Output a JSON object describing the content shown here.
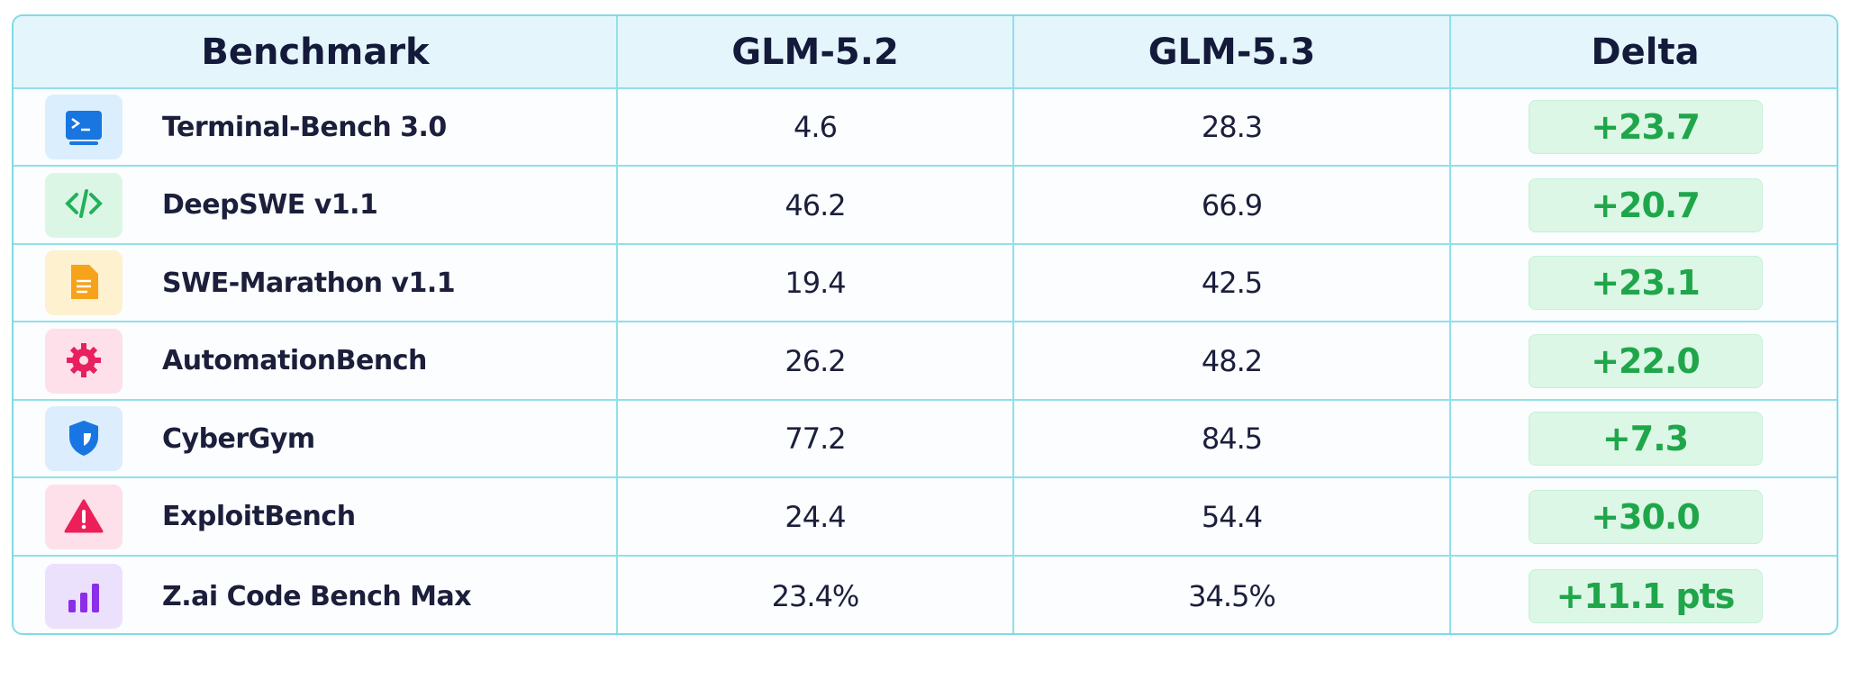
{
  "table": {
    "header": [
      "Benchmark",
      "GLM-5.2",
      "GLM-5.3",
      "Delta"
    ],
    "rows": [
      [
        "Terminal-Bench 3.0",
        "4.6",
        "28.3",
        "+23.7"
      ],
      [
        "DeepSWE v1.1",
        "46.2",
        "66.9",
        "+20.7"
      ],
      [
        "SWE-Marathon v1.1",
        "19.4",
        "42.5",
        "+23.1"
      ],
      [
        "AutomationBench",
        "26.2",
        "48.2",
        "+22.0"
      ],
      [
        "CyberGym",
        "77.2",
        "84.5",
        "+7.3"
      ],
      [
        "ExploitBench",
        "24.4",
        "54.4",
        "+30.0"
      ],
      [
        "Z.ai Code Bench Max",
        "23.4%",
        "34.5%",
        "+11.1 pts"
      ]
    ]
  }
}
